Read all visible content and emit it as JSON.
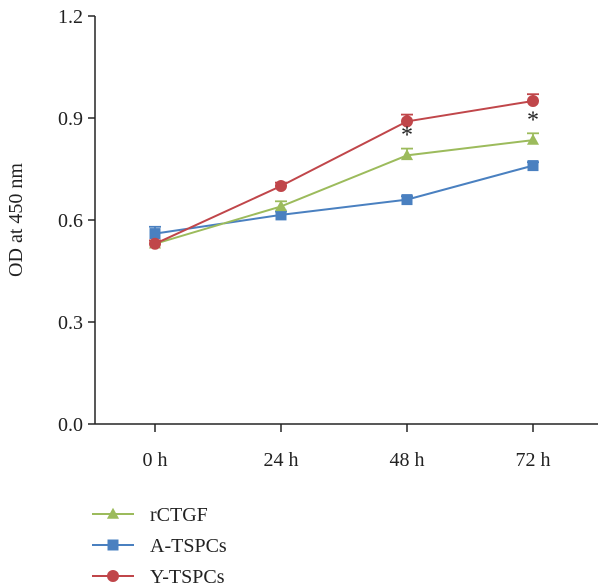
{
  "chart_data": {
    "type": "line",
    "xlabel": "",
    "ylabel": "OD at 450 nm",
    "ylim": [
      0,
      1.2
    ],
    "yticks": [
      0.0,
      0.3,
      0.6,
      0.9,
      1.2
    ],
    "ytick_labels": [
      "0.0",
      "0.3",
      "0.6",
      "0.9",
      "1.2"
    ],
    "categories": [
      "0 h",
      "24 h",
      "48 h",
      "72 h"
    ],
    "grid": false,
    "legend_position": "bottom-left",
    "series": [
      {
        "name": "rCTGF",
        "marker": "triangle",
        "color": "#9cbb5c",
        "values": [
          0.53,
          0.64,
          0.79,
          0.835
        ],
        "errors": [
          0.01,
          0.015,
          0.02,
          0.02
        ]
      },
      {
        "name": "A-TSPCs",
        "marker": "square",
        "color": "#4a80c0",
        "values": [
          0.56,
          0.615,
          0.66,
          0.76
        ],
        "errors": [
          0.02,
          0.01,
          0.01,
          0.01
        ]
      },
      {
        "name": "Y-TSPCs",
        "marker": "circle",
        "color": "#c0464a",
        "values": [
          0.53,
          0.7,
          0.89,
          0.95
        ],
        "errors": [
          0.01,
          0.01,
          0.02,
          0.02
        ]
      }
    ],
    "annotations": [
      {
        "category": "48 h",
        "text": "*"
      },
      {
        "category": "72 h",
        "text": "*"
      }
    ]
  }
}
